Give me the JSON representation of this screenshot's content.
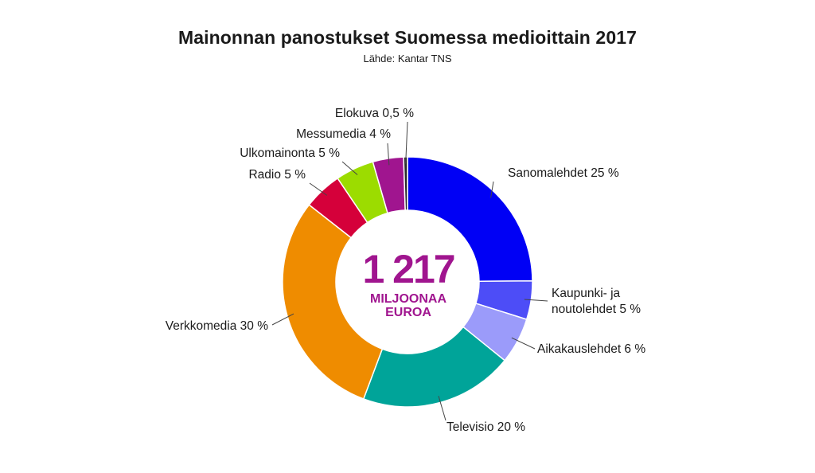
{
  "title": "Mainonnan panostukset Suomessa medioittain 2017",
  "subtitle": "Lähde: Kantar TNS",
  "center": {
    "value": "1 217",
    "unit_line1": "MILJOONAA",
    "unit_line2": "EUROA",
    "color": "#a0158f"
  },
  "chart_data": {
    "type": "pie",
    "title": "Mainonnan panostukset Suomessa medioittain 2017",
    "subtitle": "Lähde: Kantar TNS",
    "unit": "%",
    "slices": [
      {
        "label": "Sanomalehdet 25 %",
        "value": 25,
        "color": "#0000f5"
      },
      {
        "label": "Kaupunki- ja noutolehdet 5 %",
        "value": 5,
        "color": "#4d4df7"
      },
      {
        "label": "Aikakauslehdet 6 %",
        "value": 6,
        "color": "#9b9bfa"
      },
      {
        "label": "Televisio 20 %",
        "value": 20,
        "color": "#00a499"
      },
      {
        "label": "Verkkomedia 30 %",
        "value": 30,
        "color": "#ef8c00"
      },
      {
        "label": "Radio 5 %",
        "value": 5,
        "color": "#d5003a"
      },
      {
        "label": "Ulkomainonta 5 %",
        "value": 5,
        "color": "#9cdc00"
      },
      {
        "label": "Messumedia 4 %",
        "value": 4,
        "color": "#a0158f"
      },
      {
        "label": "Elokuva 0,5 %",
        "value": 0.5,
        "color": "#2b2b2b"
      }
    ]
  }
}
